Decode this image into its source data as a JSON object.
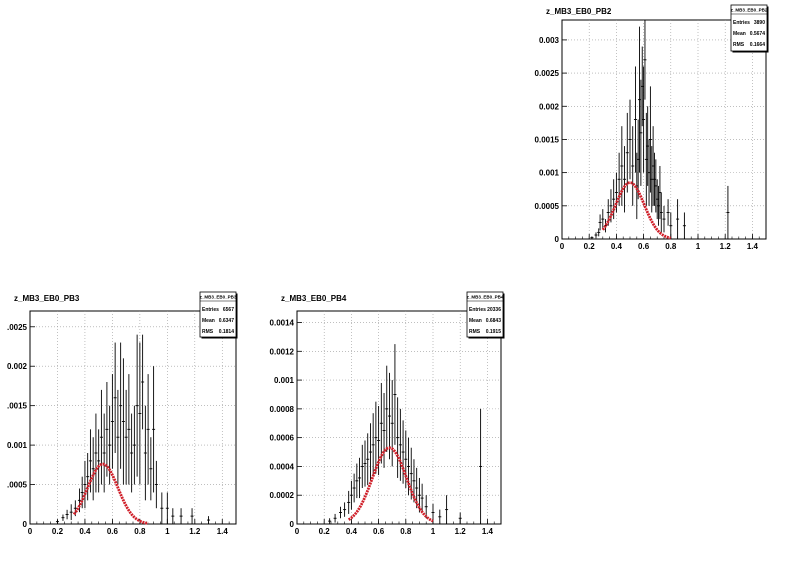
{
  "chart_data": [
    {
      "type": "scatter",
      "title": "z_MB3_EB0_PB2",
      "stats": {
        "name": "z_MB3_EB0_PB2",
        "entries_label": "Entries",
        "entries": "3890",
        "mean_label": "Mean",
        "mean": "0.5674",
        "rms_label": "RMS",
        "rms": "0.1664"
      },
      "xlim": [
        0,
        1.5
      ],
      "ylim": [
        0,
        0.0033
      ],
      "xticks": [
        "0",
        "0.2",
        "0.4",
        "0.6",
        "0.8",
        "1",
        "1.2",
        "1.4"
      ],
      "xtick_values": [
        0,
        0.2,
        0.4,
        0.6,
        0.8,
        1.0,
        1.2,
        1.4
      ],
      "yticks": [
        "0",
        "0.0005",
        "0.001",
        "0.0015",
        "0.002",
        "0.0025",
        "0.003"
      ],
      "ytick_values": [
        0,
        0.0005,
        0.001,
        0.0015,
        0.002,
        0.0025,
        0.003
      ],
      "grid": true,
      "legend_position": "top-right",
      "points": [
        [
          0.22,
          2e-05,
          2e-05
        ],
        [
          0.25,
          6e-05,
          4e-05
        ],
        [
          0.27,
          0.0001,
          6e-05
        ],
        [
          0.28,
          0.00025,
          0.00012
        ],
        [
          0.3,
          0.0003,
          0.00015
        ],
        [
          0.32,
          0.0002,
          0.0001
        ],
        [
          0.34,
          0.0004,
          0.0002
        ],
        [
          0.36,
          0.0005,
          0.00025
        ],
        [
          0.38,
          0.0006,
          0.0003
        ],
        [
          0.4,
          0.0007,
          0.0003
        ],
        [
          0.42,
          0.0009,
          0.0004
        ],
        [
          0.44,
          0.0011,
          0.0006
        ],
        [
          0.46,
          0.0009,
          0.0005
        ],
        [
          0.48,
          0.0013,
          0.0006
        ],
        [
          0.5,
          0.0015,
          0.0006
        ],
        [
          0.52,
          0.0011,
          0.0006
        ],
        [
          0.54,
          0.0018,
          0.0008
        ],
        [
          0.55,
          0.0008,
          0.0005
        ],
        [
          0.56,
          0.0012,
          0.0006
        ],
        [
          0.57,
          0.0021,
          0.0011
        ],
        [
          0.58,
          0.0016,
          0.0008
        ],
        [
          0.59,
          0.0023,
          0.0006
        ],
        [
          0.6,
          0.0018,
          0.0008
        ],
        [
          0.61,
          0.0027,
          0.0006
        ],
        [
          0.62,
          0.0012,
          0.0007
        ],
        [
          0.63,
          0.0014,
          0.0006
        ],
        [
          0.64,
          0.001,
          0.0005
        ],
        [
          0.65,
          0.0015,
          0.0008
        ],
        [
          0.66,
          0.0009,
          0.0005
        ],
        [
          0.67,
          0.0011,
          0.0006
        ],
        [
          0.68,
          0.0009,
          0.0004
        ],
        [
          0.69,
          0.0008,
          0.0004
        ],
        [
          0.7,
          0.0006,
          0.0003
        ],
        [
          0.71,
          0.0005,
          0.0003
        ],
        [
          0.72,
          0.0007,
          0.0004
        ],
        [
          0.73,
          0.0004,
          0.0003
        ],
        [
          0.75,
          0.0003,
          0.0002
        ],
        [
          0.78,
          0.0004,
          0.0002
        ],
        [
          0.8,
          0.0002,
          0.0002
        ],
        [
          0.85,
          0.0003,
          0.0003
        ],
        [
          0.9,
          0.0002,
          0.0002
        ],
        [
          1.22,
          0.0004,
          0.0004
        ]
      ],
      "fit": {
        "mu": 0.5,
        "sigma": 0.105,
        "amp": 0.00085,
        "xmin": 0.3,
        "xmax": 0.8
      }
    },
    {
      "type": "scatter",
      "title": "z_MB3_EB0_PB3",
      "stats": {
        "name": "z_MB3_EB0_PB3",
        "entries_label": "Entries",
        "entries": "6567",
        "mean_label": "Mean",
        "mean": "0.6347",
        "rms_label": "RMS",
        "rms": "0.1814"
      },
      "xlim": [
        0,
        1.5
      ],
      "ylim": [
        0,
        0.0027
      ],
      "xticks": [
        "0",
        "0.2",
        "0.4",
        "0.6",
        "0.8",
        "1",
        "1.2",
        "1.4"
      ],
      "xtick_values": [
        0,
        0.2,
        0.4,
        0.6,
        0.8,
        1.0,
        1.2,
        1.4
      ],
      "yticks": [
        "0",
        ".0005",
        "0.001",
        ".0015",
        "0.002",
        ".0025"
      ],
      "ytick_values": [
        0,
        0.0005,
        0.001,
        0.0015,
        0.002,
        0.0025
      ],
      "grid": true,
      "legend_position": "top-right",
      "points": [
        [
          0.2,
          3e-05,
          2e-05
        ],
        [
          0.24,
          8e-05,
          4e-05
        ],
        [
          0.27,
          0.00012,
          6e-05
        ],
        [
          0.3,
          0.00015,
          0.0001
        ],
        [
          0.33,
          0.0002,
          0.0001
        ],
        [
          0.36,
          0.0003,
          0.00015
        ],
        [
          0.38,
          0.0004,
          0.0002
        ],
        [
          0.4,
          0.0005,
          0.0003
        ],
        [
          0.42,
          0.0006,
          0.0003
        ],
        [
          0.44,
          0.0008,
          0.0004
        ],
        [
          0.46,
          0.0007,
          0.0004
        ],
        [
          0.48,
          0.0009,
          0.0005
        ],
        [
          0.5,
          0.0008,
          0.0004
        ],
        [
          0.52,
          0.0011,
          0.0006
        ],
        [
          0.54,
          0.0009,
          0.0005
        ],
        [
          0.56,
          0.0012,
          0.0006
        ],
        [
          0.58,
          0.001,
          0.0005
        ],
        [
          0.6,
          0.0013,
          0.0006
        ],
        [
          0.62,
          0.0016,
          0.0007
        ],
        [
          0.64,
          0.0011,
          0.0006
        ],
        [
          0.66,
          0.0015,
          0.0008
        ],
        [
          0.68,
          0.0013,
          0.0008
        ],
        [
          0.7,
          0.0011,
          0.0006
        ],
        [
          0.72,
          0.0012,
          0.0007
        ],
        [
          0.74,
          0.0009,
          0.0005
        ],
        [
          0.76,
          0.001,
          0.0005
        ],
        [
          0.78,
          0.0015,
          0.0009
        ],
        [
          0.8,
          0.0014,
          0.0009
        ],
        [
          0.82,
          0.0018,
          0.0006
        ],
        [
          0.84,
          0.0009,
          0.0006
        ],
        [
          0.86,
          0.0012,
          0.0007
        ],
        [
          0.88,
          0.0007,
          0.0004
        ],
        [
          0.9,
          0.0012,
          0.0008
        ],
        [
          0.92,
          0.0005,
          0.0003
        ],
        [
          0.96,
          0.0002,
          0.0002
        ],
        [
          1.0,
          0.0002,
          0.0002
        ],
        [
          1.04,
          0.0001,
          0.0001
        ],
        [
          1.1,
          0.0001,
          0.0001
        ],
        [
          1.18,
          0.0001,
          0.0001
        ],
        [
          1.3,
          5e-05,
          5e-05
        ]
      ],
      "fit": {
        "mu": 0.53,
        "sigma": 0.11,
        "amp": 0.00076,
        "xmin": 0.32,
        "xmax": 0.86
      }
    },
    {
      "type": "scatter",
      "title": "z_MB3_EB0_PB4",
      "stats": {
        "name": "z_MB3_EB0_PB4",
        "entries_label": "Entries",
        "entries": "20336",
        "mean_label": "Mean",
        "mean": "0.6843",
        "rms_label": "RMS",
        "rms": "0.1915"
      },
      "xlim": [
        0,
        1.5
      ],
      "ylim": [
        0,
        0.00148
      ],
      "xticks": [
        "0",
        "0.2",
        "0.4",
        "0.6",
        "0.8",
        "1",
        "1.2",
        "1.4"
      ],
      "xtick_values": [
        0,
        0.2,
        0.4,
        0.6,
        0.8,
        1.0,
        1.2,
        1.4
      ],
      "yticks": [
        "0",
        "0.0002",
        "0.0004",
        "0.0006",
        "0.0008",
        "0.001",
        "0.0012",
        "0.0014"
      ],
      "ytick_values": [
        0,
        0.0002,
        0.0004,
        0.0006,
        0.0008,
        0.001,
        0.0012,
        0.0014
      ],
      "grid": true,
      "legend_position": "top-right",
      "points": [
        [
          0.24,
          2e-05,
          2e-05
        ],
        [
          0.28,
          4e-05,
          3e-05
        ],
        [
          0.32,
          8e-05,
          4e-05
        ],
        [
          0.35,
          0.0001,
          5e-05
        ],
        [
          0.38,
          0.00015,
          8e-05
        ],
        [
          0.4,
          0.0002,
          0.0001
        ],
        [
          0.42,
          0.00025,
          0.0001
        ],
        [
          0.44,
          0.0003,
          0.00012
        ],
        [
          0.46,
          0.00032,
          0.00014
        ],
        [
          0.48,
          0.0004,
          0.00015
        ],
        [
          0.5,
          0.00042,
          0.00016
        ],
        [
          0.52,
          0.00045,
          0.00018
        ],
        [
          0.54,
          0.0005,
          0.0002
        ],
        [
          0.56,
          0.00055,
          0.00022
        ],
        [
          0.58,
          0.0006,
          0.00025
        ],
        [
          0.6,
          0.00058,
          0.00024
        ],
        [
          0.62,
          0.0007,
          0.00028
        ],
        [
          0.64,
          0.00065,
          0.00026
        ],
        [
          0.66,
          0.0008,
          0.0003
        ],
        [
          0.68,
          0.00075,
          0.0003
        ],
        [
          0.7,
          0.0007,
          0.0003
        ],
        [
          0.72,
          0.0009,
          0.00035
        ],
        [
          0.74,
          0.0006,
          0.00028
        ],
        [
          0.76,
          0.00055,
          0.00025
        ],
        [
          0.78,
          0.0005,
          0.00022
        ],
        [
          0.8,
          0.00045,
          0.0002
        ],
        [
          0.82,
          0.0004,
          0.0002
        ],
        [
          0.84,
          0.00035,
          0.00018
        ],
        [
          0.86,
          0.0003,
          0.00015
        ],
        [
          0.88,
          0.00025,
          0.00014
        ],
        [
          0.9,
          0.0002,
          0.00012
        ],
        [
          0.92,
          0.00018,
          0.0001
        ],
        [
          0.95,
          0.00012,
          8e-05
        ],
        [
          1.0,
          8e-05,
          6e-05
        ],
        [
          1.05,
          5e-05,
          5e-05
        ],
        [
          1.1,
          0.0001,
          0.0001
        ],
        [
          1.2,
          4e-05,
          4e-05
        ],
        [
          1.35,
          0.0004,
          0.0004
        ]
      ],
      "fit": {
        "mu": 0.68,
        "sigma": 0.125,
        "amp": 0.00053,
        "xmin": 0.38,
        "xmax": 1.0
      }
    }
  ]
}
